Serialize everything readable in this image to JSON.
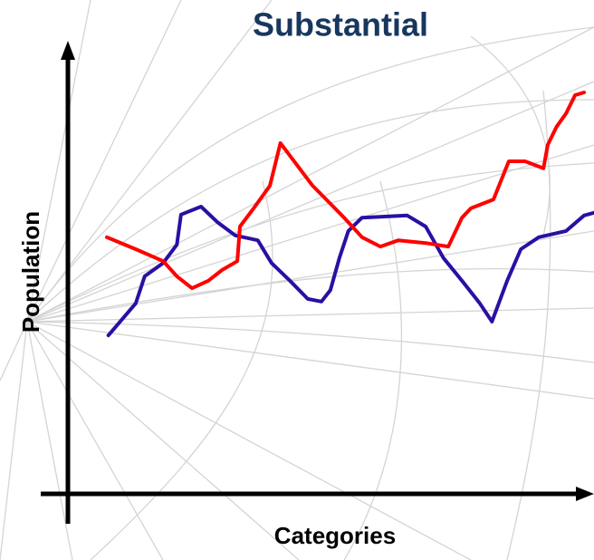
{
  "chart_data": {
    "type": "line",
    "title": "Substantial",
    "x_label": "Categories",
    "y_label": "Population",
    "xlim": [
      0,
      100
    ],
    "ylim": [
      0,
      100
    ],
    "series": [
      {
        "color": "#2b0fa3",
        "x": [
          7.7,
          12.9,
          14.6,
          18.1,
          20.7,
          21.5,
          25.3,
          28.4,
          31.8,
          36.1,
          38.7,
          42.2,
          45.6,
          48.2,
          49.9,
          51.6,
          53.3,
          55.9,
          64.5,
          68.0,
          71.4,
          74.9,
          78.3,
          80.6,
          83.5,
          86.1,
          89.5,
          94.7,
          98.1,
          100
        ],
        "values": [
          35.7,
          42.9,
          49.0,
          52.0,
          56.1,
          62.9,
          64.7,
          61.2,
          58.2,
          57.1,
          52.0,
          48.0,
          43.9,
          43.3,
          45.9,
          53.1,
          59.2,
          62.2,
          62.7,
          60.2,
          53.1,
          48.0,
          42.9,
          38.8,
          48.0,
          55.1,
          57.8,
          59.2,
          62.7,
          63.3
        ]
      },
      {
        "color": "#ff0000",
        "x": [
          7.4,
          12.9,
          18.1,
          20.7,
          23.6,
          26.7,
          29.3,
          32.2,
          32.7,
          35.3,
          38.4,
          40.4,
          43.9,
          46.5,
          49.1,
          52.5,
          55.9,
          59.4,
          62.8,
          68.0,
          72.3,
          74.9,
          76.6,
          80.9,
          83.8,
          86.9,
          90.4,
          91.2,
          92.9,
          94.7,
          96.4,
          98.1
        ],
        "values": [
          57.8,
          55.1,
          52.4,
          49.0,
          46.3,
          48.0,
          50.4,
          52.4,
          60.2,
          64.3,
          69.4,
          79.0,
          73.5,
          69.4,
          66.3,
          62.2,
          57.8,
          55.7,
          57.1,
          56.5,
          55.7,
          62.2,
          64.3,
          66.3,
          74.9,
          74.9,
          73.3,
          78.6,
          82.7,
          85.7,
          89.8,
          90.4
        ]
      }
    ]
  }
}
